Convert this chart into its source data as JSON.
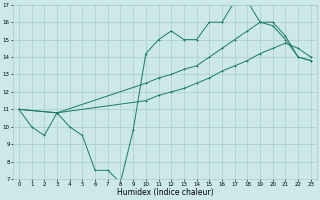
{
  "title": "",
  "xlabel": "Humidex (Indice chaleur)",
  "xlim": [
    -0.5,
    23.5
  ],
  "ylim": [
    7,
    17
  ],
  "yticks": [
    7,
    8,
    9,
    10,
    11,
    12,
    13,
    14,
    15,
    16,
    17
  ],
  "xticks": [
    0,
    1,
    2,
    3,
    4,
    5,
    6,
    7,
    8,
    9,
    10,
    11,
    12,
    13,
    14,
    15,
    16,
    17,
    18,
    19,
    20,
    21,
    22,
    23
  ],
  "bg_color": "#cce8e8",
  "grid_color": "#aacccc",
  "line_color": "#1a7a6a",
  "line1_x": [
    0,
    1,
    2,
    3,
    4,
    5,
    6,
    7,
    8,
    9,
    10,
    11,
    12,
    13,
    14,
    15,
    16,
    17,
    18,
    19,
    20,
    21,
    22,
    23
  ],
  "line1_y": [
    11,
    10,
    9.5,
    10.8,
    10.0,
    9.5,
    7.5,
    7.5,
    6.8,
    9.8,
    14.2,
    15.0,
    15.5,
    15.0,
    15.0,
    16.0,
    16.0,
    17.2,
    17.2,
    16.0,
    15.8,
    15.0,
    14.0,
    13.8
  ],
  "line2_x": [
    0,
    3,
    10,
    11,
    12,
    13,
    14,
    15,
    16,
    17,
    18,
    19,
    20,
    21,
    22,
    23
  ],
  "line2_y": [
    11,
    10.8,
    12.5,
    12.8,
    13.0,
    13.3,
    13.5,
    14.0,
    14.5,
    15.0,
    15.5,
    16.0,
    16.0,
    15.2,
    14.0,
    13.8
  ],
  "line3_x": [
    0,
    3,
    10,
    11,
    12,
    13,
    14,
    15,
    16,
    17,
    18,
    19,
    20,
    21,
    22,
    23
  ],
  "line3_y": [
    11,
    10.8,
    11.5,
    11.8,
    12.0,
    12.2,
    12.5,
    12.8,
    13.2,
    13.5,
    13.8,
    14.2,
    14.5,
    14.8,
    14.5,
    14.0
  ]
}
